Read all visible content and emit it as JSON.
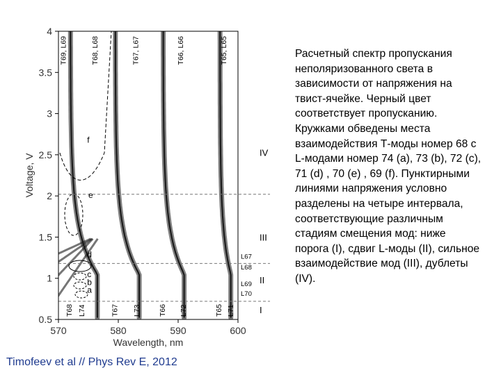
{
  "caption": "Расчетный спектр пропускания неполяризованного света в зависимости от напряжения на твист-ячейке. Черный цвет соответствует пропусканию. Кружками обведены места взаимодействия Т-моды номер 68 с L-модами номер 74 (a), 73 (b), 72 (c), 71 (d) , 70 (e) , 69 (f). Пунктирными линиями напряжения условно разделены на четыре интервала, соответствующие различным стадиям смещения мод: ниже порога (I), сдвиг L-моды (II), сильное взаимодействие мод (III), дублеты (IV).",
  "citation": "Timofeev et al // Phys Rev E, 2012",
  "colors": {
    "citation": "#1f3b8f",
    "axis": "#000000",
    "dashed": "#777777",
    "band": "#1a1a1a"
  },
  "chart_data": {
    "type": "heatmap",
    "xlabel": "Wavelength, nm",
    "ylabel": "Voltage, V",
    "xlim": [
      570,
      600
    ],
    "ylim": [
      0.5,
      4
    ],
    "x_ticks": [
      570,
      580,
      590,
      600
    ],
    "y_ticks": [
      0.5,
      1,
      1.5,
      2,
      2.5,
      3,
      3.5,
      4
    ],
    "top_mode_labels": [
      {
        "text": "T69, L69",
        "x": 571.2
      },
      {
        "text": "T68, L68",
        "x": 576.5
      },
      {
        "text": "T67, L67",
        "x": 583.3
      },
      {
        "text": "T66, L66",
        "x": 590.8
      },
      {
        "text": "T65, L65",
        "x": 598
      }
    ],
    "bottom_mode_labels": [
      {
        "text": "T68",
        "x": 572.2
      },
      {
        "text": "L74",
        "x": 574.3
      },
      {
        "text": "T67",
        "x": 579.8
      },
      {
        "text": "L73",
        "x": 583.5
      },
      {
        "text": "T66",
        "x": 587.8
      },
      {
        "text": "L72",
        "x": 591.3
      },
      {
        "text": "T65",
        "x": 597.2
      },
      {
        "text": "L71",
        "x": 599.2
      }
    ],
    "right_line_labels": [
      {
        "text": "L67",
        "y": 1.27
      },
      {
        "text": "L68",
        "y": 1.14
      },
      {
        "text": "L69",
        "y": 0.94
      },
      {
        "text": "L70",
        "y": 0.82
      }
    ],
    "interval_labels": [
      {
        "text": "IV",
        "y": 2.53
      },
      {
        "text": "III",
        "y": 1.5
      },
      {
        "text": "II",
        "y": 0.98
      },
      {
        "text": "I",
        "y": 0.62
      }
    ],
    "interval_boundaries": [
      2.02,
      1.18,
      0.72
    ],
    "circle_labels": [
      {
        "text": "a",
        "x": 574.8,
        "y": 0.86
      },
      {
        "text": "b",
        "x": 574.8,
        "y": 0.95
      },
      {
        "text": "c",
        "x": 574.8,
        "y": 1.05
      },
      {
        "text": "d",
        "x": 574.8,
        "y": 1.29
      },
      {
        "text": "e",
        "x": 575.0,
        "y": 2.01
      },
      {
        "text": "f",
        "x": 574.8,
        "y": 2.68
      }
    ],
    "t_modes": [
      {
        "name": "T68",
        "x_low": 572.0,
        "x_high": 576.5
      },
      {
        "name": "T67",
        "x_low": 579.5,
        "x_high": 583.5
      },
      {
        "name": "T66",
        "x_low": 587.5,
        "x_high": 591.0
      },
      {
        "name": "T65",
        "x_low": 597.0,
        "x_high": 598.8
      }
    ],
    "l_modes": [
      {
        "name": "L67",
        "x_at_1V": 572.0,
        "slope": 9.5
      },
      {
        "name": "L68",
        "x_at_1V": 569.5,
        "slope": 13.0
      },
      {
        "name": "L69",
        "x_at_1V": 566.0,
        "slope": 20.0
      },
      {
        "name": "L70",
        "x_at_1V": 561.0,
        "slope": 30.0
      }
    ]
  }
}
